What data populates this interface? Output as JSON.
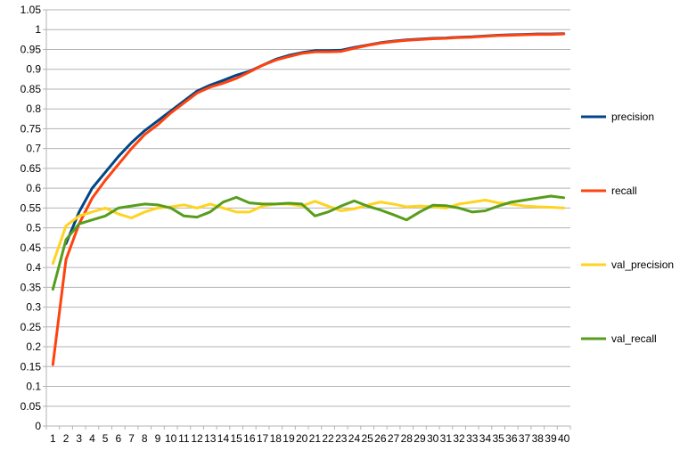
{
  "chart_data": {
    "type": "line",
    "title": "",
    "xlabel": "",
    "ylabel": "",
    "x": [
      1,
      2,
      3,
      4,
      5,
      6,
      7,
      8,
      9,
      10,
      11,
      12,
      13,
      14,
      15,
      16,
      17,
      18,
      19,
      20,
      21,
      22,
      23,
      24,
      25,
      26,
      27,
      28,
      29,
      30,
      31,
      32,
      33,
      34,
      35,
      36,
      37,
      38,
      39,
      40
    ],
    "ylim": [
      0,
      1.05
    ],
    "yticks": [
      "0",
      "0.05",
      "0.1",
      "0.15",
      "0.2",
      "0.25",
      "0.3",
      "0.35",
      "0.4",
      "0.45",
      "0.5",
      "0.55",
      "0.6",
      "0.65",
      "0.7",
      "0.75",
      "0.8",
      "0.85",
      "0.9",
      "0.95",
      "1",
      "1.05"
    ],
    "grid": "horizontal",
    "legend_position": "right",
    "series": [
      {
        "name": "precision",
        "color": "#004586",
        "values": [
          null,
          0.46,
          0.54,
          0.6,
          0.64,
          0.68,
          0.715,
          0.745,
          0.77,
          0.795,
          0.82,
          0.845,
          0.86,
          0.872,
          0.885,
          0.895,
          0.91,
          0.925,
          0.935,
          0.942,
          0.947,
          0.947,
          0.948,
          0.955,
          0.961,
          0.967,
          0.971,
          0.974,
          0.976,
          0.978,
          0.979,
          0.981,
          0.982,
          0.984,
          0.986,
          0.987,
          0.988,
          0.989,
          0.989,
          0.99
        ]
      },
      {
        "name": "recall",
        "color": "#ff420e",
        "values": [
          0.155,
          0.42,
          0.51,
          0.575,
          0.62,
          0.66,
          0.7,
          0.735,
          0.76,
          0.79,
          0.815,
          0.84,
          0.855,
          0.865,
          0.877,
          0.893,
          0.91,
          0.923,
          0.932,
          0.94,
          0.944,
          0.944,
          0.945,
          0.953,
          0.96,
          0.966,
          0.97,
          0.973,
          0.975,
          0.977,
          0.978,
          0.98,
          0.981,
          0.983,
          0.985,
          0.986,
          0.987,
          0.988,
          0.988,
          0.989
        ]
      },
      {
        "name": "val_precision",
        "color": "#ffd320",
        "values": [
          0.41,
          0.505,
          0.53,
          0.54,
          0.55,
          0.535,
          0.525,
          0.54,
          0.55,
          0.553,
          0.558,
          0.55,
          0.56,
          0.55,
          0.54,
          0.54,
          0.555,
          0.56,
          0.56,
          0.555,
          0.567,
          0.555,
          0.543,
          0.548,
          0.557,
          0.565,
          0.56,
          0.553,
          0.555,
          0.553,
          0.55,
          0.56,
          0.565,
          0.57,
          0.563,
          0.56,
          0.555,
          0.553,
          0.552,
          0.55
        ]
      },
      {
        "name": "val_recall",
        "color": "#579d1c",
        "values": [
          0.345,
          0.47,
          0.51,
          0.52,
          0.53,
          0.55,
          0.555,
          0.56,
          0.558,
          0.55,
          0.53,
          0.527,
          0.54,
          0.565,
          0.577,
          0.563,
          0.56,
          0.56,
          0.562,
          0.56,
          0.53,
          0.54,
          0.555,
          0.568,
          0.555,
          0.545,
          0.533,
          0.52,
          0.54,
          0.557,
          0.556,
          0.55,
          0.54,
          0.543,
          0.555,
          0.565,
          0.57,
          0.575,
          0.58,
          0.576
        ]
      }
    ]
  }
}
